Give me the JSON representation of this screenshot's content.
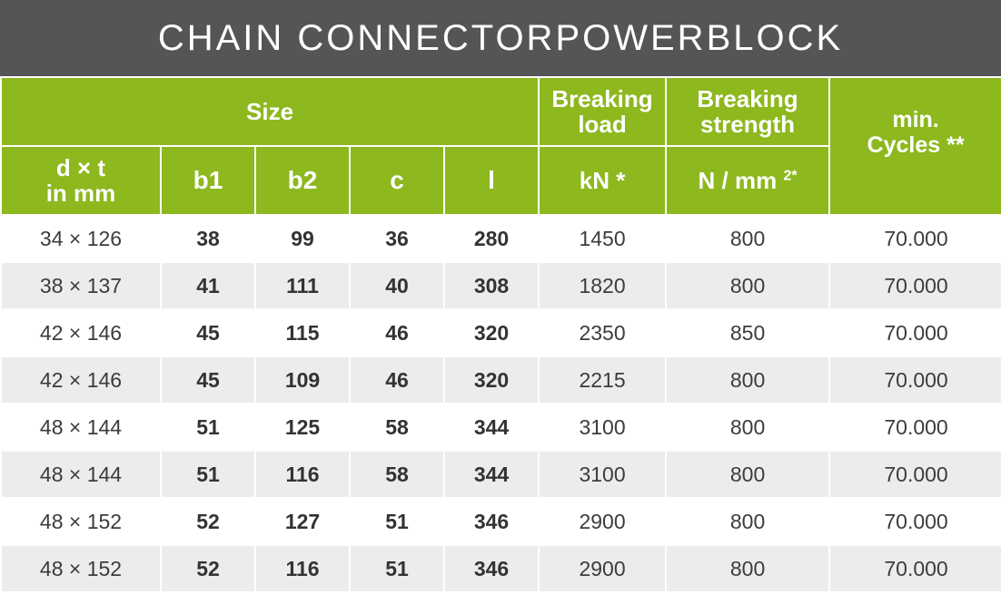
{
  "title": {
    "part1": "CHAIN CONNECTOR ",
    "part2": "POWERBLOCK"
  },
  "header": {
    "size": "Size",
    "breaking_load": [
      "Breaking",
      "load"
    ],
    "breaking_strength": [
      "Breaking",
      "strength"
    ],
    "cycles": [
      "min.",
      "Cycles **"
    ],
    "dxt": [
      "d × t",
      "in mm"
    ],
    "b1": "b1",
    "b2": "b2",
    "c": "c",
    "l": "l",
    "kn": "kN *",
    "nmm": "N / mm",
    "nmm_sup": "2*"
  },
  "rows": [
    {
      "dxt": "34 × 126",
      "b1": "38",
      "b2": "99",
      "c": "36",
      "l": "280",
      "load": "1450",
      "strength": "800",
      "cycles": "70.000"
    },
    {
      "dxt": "38 × 137",
      "b1": "41",
      "b2": "111",
      "c": "40",
      "l": "308",
      "load": "1820",
      "strength": "800",
      "cycles": "70.000"
    },
    {
      "dxt": "42 × 146",
      "b1": "45",
      "b2": "115",
      "c": "46",
      "l": "320",
      "load": "2350",
      "strength": "850",
      "cycles": "70.000"
    },
    {
      "dxt": "42 × 146",
      "b1": "45",
      "b2": "109",
      "c": "46",
      "l": "320",
      "load": "2215",
      "strength": "800",
      "cycles": "70.000"
    },
    {
      "dxt": "48 × 144",
      "b1": "51",
      "b2": "125",
      "c": "58",
      "l": "344",
      "load": "3100",
      "strength": "800",
      "cycles": "70.000"
    },
    {
      "dxt": "48 × 144",
      "b1": "51",
      "b2": "116",
      "c": "58",
      "l": "344",
      "load": "3100",
      "strength": "800",
      "cycles": "70.000"
    },
    {
      "dxt": "48 × 152",
      "b1": "52",
      "b2": "127",
      "c": "51",
      "l": "346",
      "load": "2900",
      "strength": "800",
      "cycles": "70.000"
    },
    {
      "dxt": "48 × 152",
      "b1": "52",
      "b2": "116",
      "c": "51",
      "l": "346",
      "load": "2900",
      "strength": "800",
      "cycles": "70.000"
    }
  ]
}
